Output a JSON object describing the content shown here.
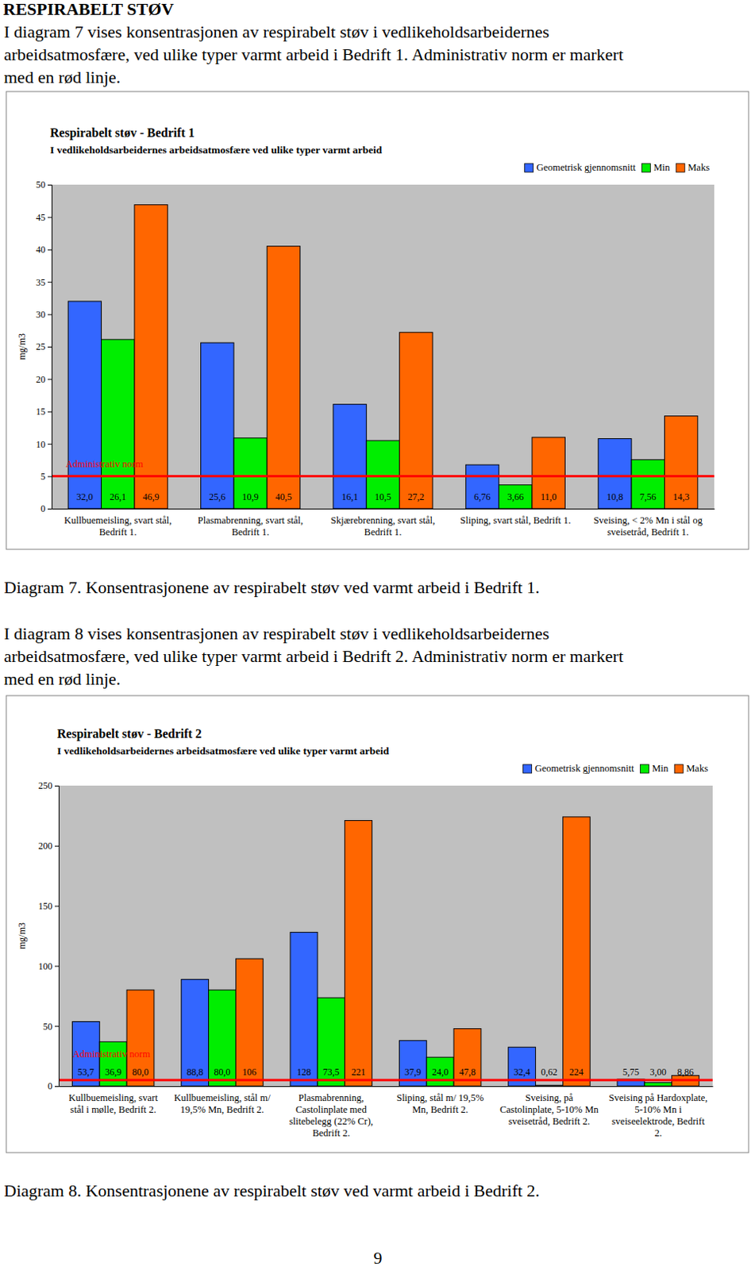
{
  "heading": "RESPIRABELT STØV",
  "paragraphs": [
    [
      "I diagram 7 vises konsentrasjonen av respirabelt støv i vedlikeholdsarbeidernes",
      "arbeidsatmosfære, ved ulike typer varmt arbeid i Bedrift 1. Administrativ norm er markert",
      "med en rød linje."
    ],
    [
      "I diagram 8 vises konsentrasjonen av respirabelt støv i vedlikeholdsarbeidernes",
      "arbeidsatmosfære, ved ulike typer varmt arbeid i Bedrift 2. Administrativ norm er markert",
      "med en rød linje."
    ]
  ],
  "captions": [
    "Diagram 7. Konsentrasjonene av respirabelt støv ved varmt arbeid i Bedrift 1.",
    "Diagram 8. Konsentrasjonene av respirabelt støv ved varmt arbeid i Bedrift 2."
  ],
  "page_number": "9",
  "chart_data": [
    {
      "type": "bar",
      "title": "Respirabelt støv - Bedrift 1",
      "subtitle": "I vedlikeholdsarbeidernes arbeidsatmosfære ved ulike typer varmt arbeid",
      "y_label": "mg/m3",
      "categories": [
        "Kullbuemeisling, svart stål, Bedrift 1.",
        "Plasmabrenning, svart stål, Bedrift 1.",
        "Skjærebrenning, svart stål, Bedrift 1.",
        "Sliping, svart stål, Bedrift 1.",
        "Sveising, < 2% Mn i stål og sveisetråd, Bedrift 1."
      ],
      "series": [
        {
          "name": "Geometrisk gjennomsnitt",
          "color": "#3366ff",
          "values": [
            32.0,
            25.6,
            16.1,
            6.76,
            10.8
          ],
          "value_labels": [
            "32,0",
            "25,6",
            "16,1",
            "6,76",
            "10,8"
          ]
        },
        {
          "name": "Min",
          "color": "#00ee00",
          "values": [
            26.1,
            10.9,
            10.5,
            3.66,
            7.56
          ],
          "value_labels": [
            "26,1",
            "10,9",
            "10,5",
            "3,66",
            "7,56"
          ]
        },
        {
          "name": "Maks",
          "color": "#ff6600",
          "values": [
            46.9,
            40.5,
            27.2,
            11.0,
            14.3
          ],
          "value_labels": [
            "46,9",
            "40,5",
            "27,2",
            "11,0",
            "14,3"
          ]
        }
      ],
      "ylim": [
        0,
        50
      ],
      "yticks": [
        0,
        5,
        10,
        15,
        20,
        25,
        30,
        35,
        40,
        45,
        50
      ],
      "grid": false,
      "legend": "top-right",
      "data_labels": true,
      "annotations": [
        {
          "text": "Administrativ norm",
          "value": 5,
          "color": "#ff0000"
        }
      ]
    },
    {
      "type": "bar",
      "title": "Respirabelt støv - Bedrift 2",
      "subtitle": "I vedlikeholdsarbeidernes arbeidsatmosfære ved ulike typer varmt arbeid",
      "y_label": "mg/m3",
      "categories": [
        "Kullbuemeisling, svart stål i mølle, Bedrift 2.",
        "Kullbuemeisling, stål m/ 19,5% Mn, Bedrift 2.",
        "Plasmabrenning, Castolinplate med slitebelegg (22% Cr), Bedrift 2.",
        "Sliping, stål m/ 19,5% Mn, Bedrift 2.",
        "Sveising, på Castolinplate, 5-10% Mn sveisetråd, Bedrift 2.",
        "Sveising på Hardoxplate, 5-10% Mn i sveiseelektrode, Bedrift 2."
      ],
      "series": [
        {
          "name": "Geometrisk gjennomsnitt",
          "color": "#3366ff",
          "values": [
            53.7,
            88.8,
            128,
            37.9,
            32.4,
            5.75
          ],
          "value_labels": [
            "53,7",
            "88,8",
            "128",
            "37,9",
            "32,4",
            "5,75"
          ]
        },
        {
          "name": "Min",
          "color": "#00ee00",
          "values": [
            36.9,
            80.0,
            73.5,
            24.0,
            0.62,
            3.0
          ],
          "value_labels": [
            "36,9",
            "80,0",
            "73,5",
            "24,0",
            "0,62",
            "3,00"
          ]
        },
        {
          "name": "Maks",
          "color": "#ff6600",
          "values": [
            80.0,
            106,
            221,
            47.8,
            224,
            8.86
          ],
          "value_labels": [
            "80,0",
            "106",
            "221",
            "47,8",
            "224",
            "8,86"
          ]
        }
      ],
      "ylim": [
        0,
        250
      ],
      "yticks": [
        0,
        50,
        100,
        150,
        200,
        250
      ],
      "grid": false,
      "legend": "top-right",
      "data_labels": true,
      "annotations": [
        {
          "text": "Administrativ norm",
          "value": 5,
          "color": "#ff0000"
        }
      ]
    }
  ]
}
